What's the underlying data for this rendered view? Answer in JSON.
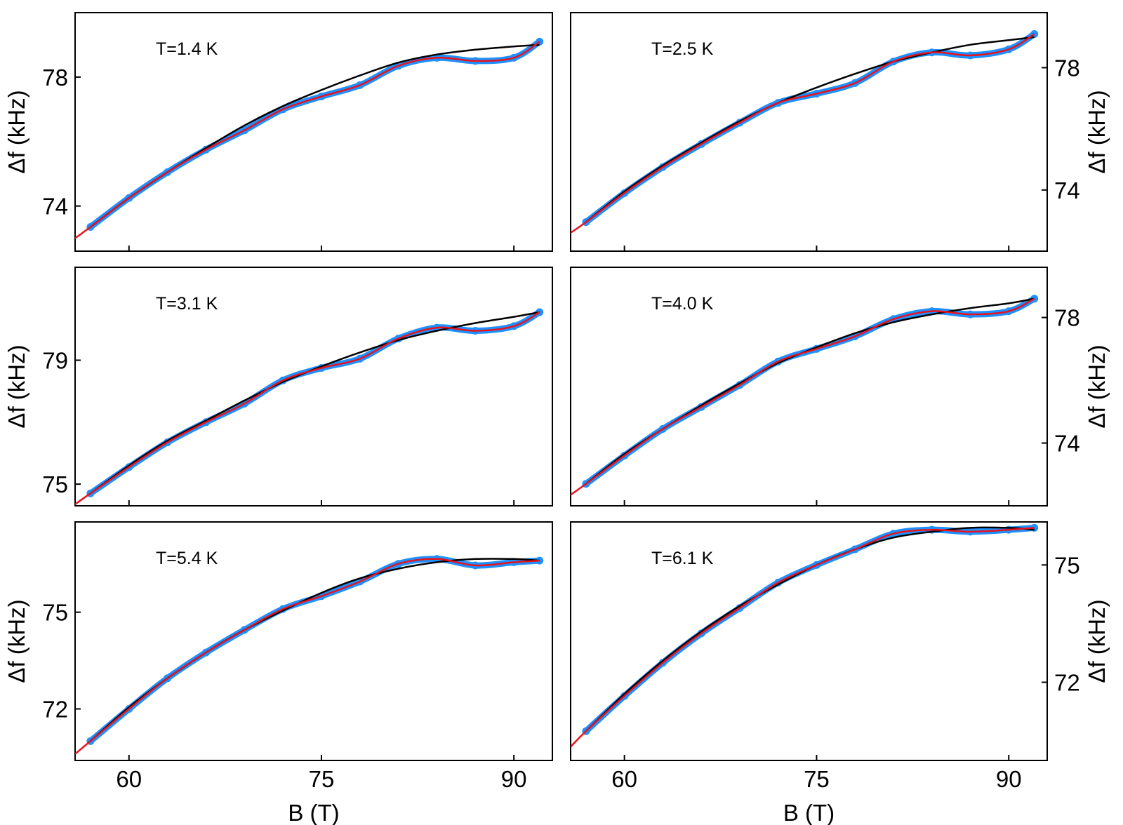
{
  "chart_data": [
    {
      "type": "scatter",
      "annotation": "T=1.4 K",
      "xlabel": "",
      "ylabel": "Δf (kHz)",
      "xlim": [
        55.8,
        93
      ],
      "ylim": [
        72.6,
        80.0
      ],
      "xticks": [
        60,
        75,
        90
      ],
      "yticks": [
        74,
        78
      ],
      "ytick_side": "left",
      "series": [
        {
          "role": "data",
          "color": "#1e90ff",
          "x": [
            57,
            60,
            63,
            66,
            69,
            72,
            75,
            78,
            81,
            84,
            87,
            90,
            92
          ],
          "y": [
            73.35,
            74.25,
            75.05,
            75.75,
            76.35,
            77.0,
            77.4,
            77.75,
            78.35,
            78.6,
            78.5,
            78.6,
            79.1
          ]
        },
        {
          "role": "fit-red",
          "color": "#e8131b",
          "x": [
            55.8,
            57,
            60,
            63,
            66,
            69,
            72,
            75,
            78,
            81,
            84,
            87,
            90,
            92
          ],
          "y": [
            73.0,
            73.35,
            74.25,
            75.05,
            75.75,
            76.35,
            77.0,
            77.4,
            77.75,
            78.35,
            78.6,
            78.5,
            78.6,
            79.1
          ]
        },
        {
          "role": "fit-black",
          "color": "#000000",
          "x": [
            57,
            60,
            63,
            66,
            69,
            72,
            75,
            78,
            81,
            84,
            87,
            90,
            92
          ],
          "y": [
            73.35,
            74.25,
            75.05,
            75.8,
            76.5,
            77.1,
            77.6,
            78.05,
            78.45,
            78.7,
            78.85,
            78.95,
            79.0
          ]
        }
      ]
    },
    {
      "type": "scatter",
      "annotation": "T=2.5 K",
      "xlabel": "",
      "ylabel": "Δf (kHz)",
      "xlim": [
        55.8,
        93
      ],
      "ylim": [
        72.0,
        79.8
      ],
      "xticks": [
        60,
        75,
        90
      ],
      "yticks": [
        74,
        78
      ],
      "ytick_side": "right",
      "series": [
        {
          "role": "data",
          "color": "#1e90ff",
          "x": [
            57,
            60,
            63,
            66,
            69,
            72,
            75,
            78,
            81,
            84,
            87,
            90,
            92
          ],
          "y": [
            72.95,
            73.9,
            74.75,
            75.5,
            76.2,
            76.85,
            77.15,
            77.5,
            78.2,
            78.5,
            78.4,
            78.6,
            79.1
          ]
        },
        {
          "role": "fit-red",
          "color": "#e8131b",
          "x": [
            55.8,
            57,
            60,
            63,
            66,
            69,
            72,
            75,
            78,
            81,
            84,
            87,
            90,
            92
          ],
          "y": [
            72.6,
            72.95,
            73.9,
            74.75,
            75.5,
            76.2,
            76.85,
            77.15,
            77.5,
            78.2,
            78.5,
            78.4,
            78.6,
            79.1
          ]
        },
        {
          "role": "fit-black",
          "color": "#000000",
          "x": [
            57,
            60,
            63,
            66,
            69,
            72,
            75,
            78,
            81,
            84,
            87,
            90,
            92
          ],
          "y": [
            72.95,
            73.95,
            74.8,
            75.55,
            76.25,
            76.85,
            77.35,
            77.8,
            78.2,
            78.5,
            78.75,
            78.9,
            79.0
          ]
        }
      ]
    },
    {
      "type": "scatter",
      "annotation": "T=3.1 K",
      "xlabel": "",
      "ylabel": "Δf (kHz)",
      "xlim": [
        55.8,
        93
      ],
      "ylim": [
        74.3,
        82.0
      ],
      "xticks": [
        60,
        75,
        90
      ],
      "yticks": [
        75,
        79
      ],
      "ytick_side": "left",
      "series": [
        {
          "role": "data",
          "color": "#1e90ff",
          "x": [
            57,
            60,
            63,
            66,
            69,
            72,
            75,
            78,
            81,
            84,
            87,
            90,
            92
          ],
          "y": [
            74.7,
            75.55,
            76.35,
            77.0,
            77.6,
            78.35,
            78.75,
            79.05,
            79.7,
            80.05,
            79.95,
            80.1,
            80.55
          ]
        },
        {
          "role": "fit-red",
          "color": "#e8131b",
          "x": [
            55.8,
            57,
            60,
            63,
            66,
            69,
            72,
            75,
            78,
            81,
            84,
            87,
            90,
            92
          ],
          "y": [
            74.35,
            74.7,
            75.55,
            76.35,
            77.0,
            77.6,
            78.35,
            78.75,
            79.05,
            79.7,
            80.05,
            79.95,
            80.1,
            80.55
          ]
        },
        {
          "role": "fit-black",
          "color": "#000000",
          "x": [
            57,
            60,
            63,
            66,
            69,
            72,
            75,
            78,
            81,
            84,
            87,
            90,
            92
          ],
          "y": [
            74.7,
            75.6,
            76.4,
            77.05,
            77.7,
            78.3,
            78.8,
            79.25,
            79.65,
            79.95,
            80.2,
            80.4,
            80.55
          ]
        }
      ]
    },
    {
      "type": "scatter",
      "annotation": "T=4.0 K",
      "xlabel": "",
      "ylabel": "Δf (kHz)",
      "xlim": [
        55.8,
        93
      ],
      "ylim": [
        72.0,
        79.6
      ],
      "xticks": [
        60,
        75,
        90
      ],
      "yticks": [
        74,
        78
      ],
      "ytick_side": "right",
      "series": [
        {
          "role": "data",
          "color": "#1e90ff",
          "x": [
            57,
            60,
            63,
            66,
            69,
            72,
            75,
            78,
            81,
            84,
            87,
            90,
            92
          ],
          "y": [
            72.7,
            73.6,
            74.45,
            75.15,
            75.85,
            76.6,
            77.0,
            77.4,
            77.95,
            78.2,
            78.1,
            78.2,
            78.6
          ]
        },
        {
          "role": "fit-red",
          "color": "#e8131b",
          "x": [
            55.8,
            57,
            60,
            63,
            66,
            69,
            72,
            75,
            78,
            81,
            84,
            87,
            90,
            92
          ],
          "y": [
            72.35,
            72.7,
            73.6,
            74.45,
            75.15,
            75.85,
            76.6,
            77.0,
            77.4,
            77.95,
            78.2,
            78.1,
            78.2,
            78.6
          ]
        },
        {
          "role": "fit-black",
          "color": "#000000",
          "x": [
            57,
            60,
            63,
            66,
            69,
            72,
            75,
            78,
            81,
            84,
            87,
            90,
            92
          ],
          "y": [
            72.7,
            73.65,
            74.45,
            75.2,
            75.9,
            76.55,
            77.05,
            77.5,
            77.85,
            78.1,
            78.3,
            78.45,
            78.6
          ]
        }
      ]
    },
    {
      "type": "scatter",
      "annotation": "T=5.4 K",
      "xlabel": "B (T)",
      "ylabel": "Δf (kHz)",
      "xlim": [
        55.8,
        93
      ],
      "ylim": [
        70.4,
        77.8
      ],
      "xticks": [
        60,
        75,
        90
      ],
      "yticks": [
        72,
        75
      ],
      "ytick_side": "left",
      "series": [
        {
          "role": "data",
          "color": "#1e90ff",
          "x": [
            57,
            60,
            63,
            66,
            69,
            72,
            75,
            78,
            81,
            84,
            87,
            90,
            92
          ],
          "y": [
            71.0,
            72.0,
            72.95,
            73.75,
            74.45,
            75.1,
            75.5,
            75.95,
            76.5,
            76.65,
            76.45,
            76.55,
            76.6
          ]
        },
        {
          "role": "fit-red",
          "color": "#e8131b",
          "x": [
            55.8,
            57,
            60,
            63,
            66,
            69,
            72,
            75,
            78,
            81,
            84,
            87,
            90,
            92
          ],
          "y": [
            70.6,
            71.0,
            72.0,
            72.95,
            73.75,
            74.45,
            75.1,
            75.5,
            75.95,
            76.5,
            76.65,
            76.45,
            76.55,
            76.6
          ]
        },
        {
          "role": "fit-black",
          "color": "#000000",
          "x": [
            57,
            60,
            63,
            66,
            69,
            72,
            75,
            78,
            81,
            84,
            87,
            90,
            92
          ],
          "y": [
            71.0,
            72.05,
            72.95,
            73.75,
            74.45,
            75.05,
            75.6,
            76.05,
            76.35,
            76.55,
            76.65,
            76.65,
            76.6
          ]
        }
      ]
    },
    {
      "type": "scatter",
      "annotation": "T=6.1 K",
      "xlabel": "B (T)",
      "ylabel": "Δf (kHz)",
      "xlim": [
        55.8,
        93
      ],
      "ylim": [
        70.0,
        76.1
      ],
      "xticks": [
        60,
        75,
        90
      ],
      "yticks": [
        72,
        75
      ],
      "ytick_side": "right",
      "series": [
        {
          "role": "data",
          "color": "#1e90ff",
          "x": [
            57,
            60,
            63,
            66,
            69,
            72,
            75,
            78,
            81,
            84,
            87,
            90,
            92
          ],
          "y": [
            70.75,
            71.65,
            72.5,
            73.25,
            73.9,
            74.55,
            75.0,
            75.4,
            75.8,
            75.9,
            75.85,
            75.9,
            75.95
          ]
        },
        {
          "role": "fit-red",
          "color": "#e8131b",
          "x": [
            55.8,
            57,
            60,
            63,
            66,
            69,
            72,
            75,
            78,
            81,
            84,
            87,
            90,
            92
          ],
          "y": [
            70.35,
            70.75,
            71.65,
            72.5,
            73.25,
            73.9,
            74.55,
            75.0,
            75.4,
            75.8,
            75.9,
            75.85,
            75.9,
            75.95
          ]
        },
        {
          "role": "fit-black",
          "color": "#000000",
          "x": [
            57,
            60,
            63,
            66,
            69,
            72,
            75,
            78,
            81,
            84,
            87,
            90,
            92
          ],
          "y": [
            70.75,
            71.7,
            72.55,
            73.3,
            73.95,
            74.5,
            75.0,
            75.4,
            75.7,
            75.85,
            75.95,
            75.95,
            75.9
          ]
        }
      ]
    }
  ]
}
